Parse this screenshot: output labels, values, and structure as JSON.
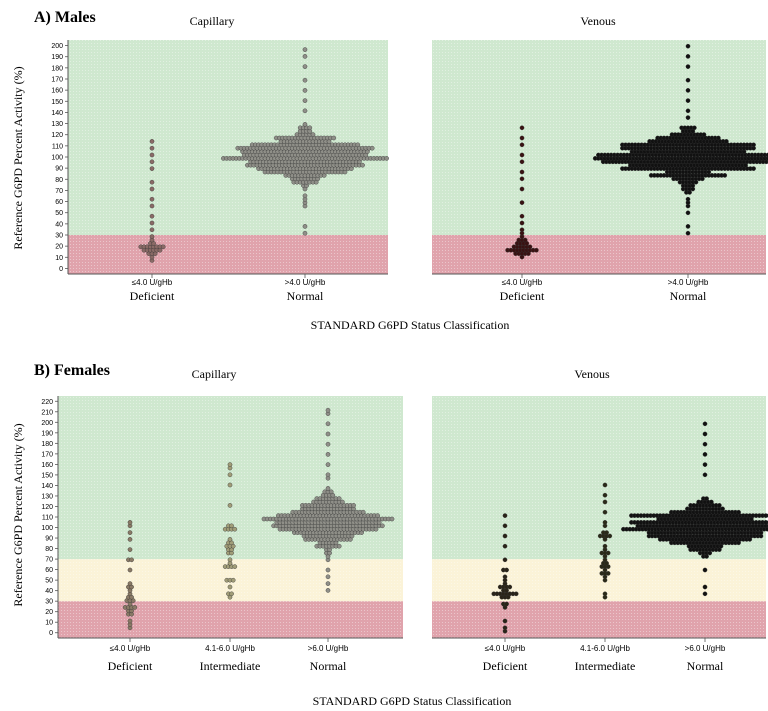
{
  "chart_data": [
    {
      "type": "scatter",
      "subtype": "beeswarm",
      "title": "A) Males",
      "ylabel": "Reference G6PD Percent Activity (%)",
      "xlabel": "STANDARD G6PD Status Classification",
      "ylim": [
        -5,
        205
      ],
      "yticks": [
        0,
        10,
        20,
        30,
        40,
        50,
        60,
        70,
        80,
        90,
        100,
        110,
        120,
        130,
        140,
        150,
        160,
        170,
        180,
        190,
        200
      ],
      "bands": [
        {
          "from": -5,
          "to": 30,
          "color": "#e0a3ac"
        },
        {
          "from": 30,
          "to": 205,
          "color": "#cfe8cf"
        }
      ],
      "groups": [
        {
          "name": "Capillary",
          "point_color": "#8f8f88",
          "categories": [
            {
              "range": "≤4.0 U/gHb",
              "label": "Deficient",
              "point_color": "#8a6a66",
              "median": 18,
              "n_core": 22,
              "core_sd": 5,
              "tail": [
                30,
                35,
                41,
                48,
                55,
                62,
                71,
                77,
                89,
                95,
                101,
                107,
                114
              ]
            },
            {
              "range": ">4.0 U/gHb",
              "label": "Normal",
              "median": 100,
              "n_core": 420,
              "core_sd": 11,
              "tail": [
                31,
                38,
                55,
                60,
                65,
                140,
                150,
                160,
                170,
                180,
                190,
                197
              ]
            }
          ]
        },
        {
          "name": "Venous",
          "point_color": "#111111",
          "categories": [
            {
              "range": "≤4.0 U/gHb",
              "label": "Deficient",
              "point_color": "#3a1212",
              "median": 17,
              "n_core": 30,
              "core_sd": 5,
              "tail": [
                30,
                35,
                41,
                48,
                60,
                72,
                79,
                86,
                95,
                103,
                110,
                117,
                125
              ]
            },
            {
              "range": ">4.0 U/gHb",
              "label": "Normal",
              "median": 100,
              "n_core": 500,
              "core_sd": 11,
              "tail": [
                32,
                38,
                50,
                55,
                60,
                140,
                150,
                160,
                170,
                180,
                190,
                198
              ]
            }
          ]
        }
      ]
    },
    {
      "type": "scatter",
      "subtype": "beeswarm",
      "title": "B) Females",
      "ylabel": "Reference G6PD Percent Activity (%)",
      "xlabel": "STANDARD G6PD Status Classification",
      "ylim": [
        -5,
        225
      ],
      "yticks": [
        0,
        10,
        20,
        30,
        40,
        50,
        60,
        70,
        80,
        90,
        100,
        110,
        120,
        130,
        140,
        150,
        160,
        170,
        180,
        190,
        200,
        210,
        220
      ],
      "bands": [
        {
          "from": -5,
          "to": 30,
          "color": "#e0a3ac"
        },
        {
          "from": 30,
          "to": 70,
          "color": "#fbf3d8"
        },
        {
          "from": 70,
          "to": 225,
          "color": "#cfe8cf"
        }
      ],
      "groups": [
        {
          "name": "Capillary",
          "point_color": "#8f8f88",
          "categories": [
            {
              "range": "≤4.0 U/gHb",
              "label": "Deficient",
              "point_color": "#8a7a66",
              "median": 35,
              "n_core": 22,
              "core_sd": 14,
              "tail": [
                5,
                60,
                70,
                80,
                88,
                95,
                101,
                106
              ]
            },
            {
              "range": "4.1-6.0 U/gHb",
              "label": "Intermediate",
              "point_color": "#a19d78",
              "median": 75,
              "n_core": 28,
              "core_sd": 18,
              "tail": [
                35,
                120,
                140,
                150,
                155,
                160
              ]
            },
            {
              "range": ">6.0 U/gHb",
              "label": "Normal",
              "median": 105,
              "n_core": 330,
              "core_sd": 13,
              "tail": [
                40,
                47,
                60,
                150,
                160,
                170,
                180,
                190,
                200,
                207,
                213
              ]
            }
          ]
        },
        {
          "name": "Venous",
          "point_color": "#111111",
          "categories": [
            {
              "range": "≤4.0 U/gHb",
              "label": "Deficient",
              "point_color": "#2a2418",
              "median": 35,
              "n_core": 26,
              "core_sd": 13,
              "tail": [
                5,
                60,
                70,
                82,
                92,
                101,
                110
              ]
            },
            {
              "range": "4.1-6.0 U/gHb",
              "label": "Intermediate",
              "point_color": "#2a2a18",
              "median": 75,
              "n_core": 28,
              "core_sd": 18,
              "tail": [
                33,
                115,
                125,
                132,
                139
              ]
            },
            {
              "range": ">6.0 U/gHb",
              "label": "Normal",
              "median": 100,
              "n_core": 420,
              "core_sd": 11,
              "tail": [
                38,
                43,
                60,
                150,
                160,
                170,
                180,
                190,
                200
              ]
            }
          ]
        }
      ]
    }
  ]
}
